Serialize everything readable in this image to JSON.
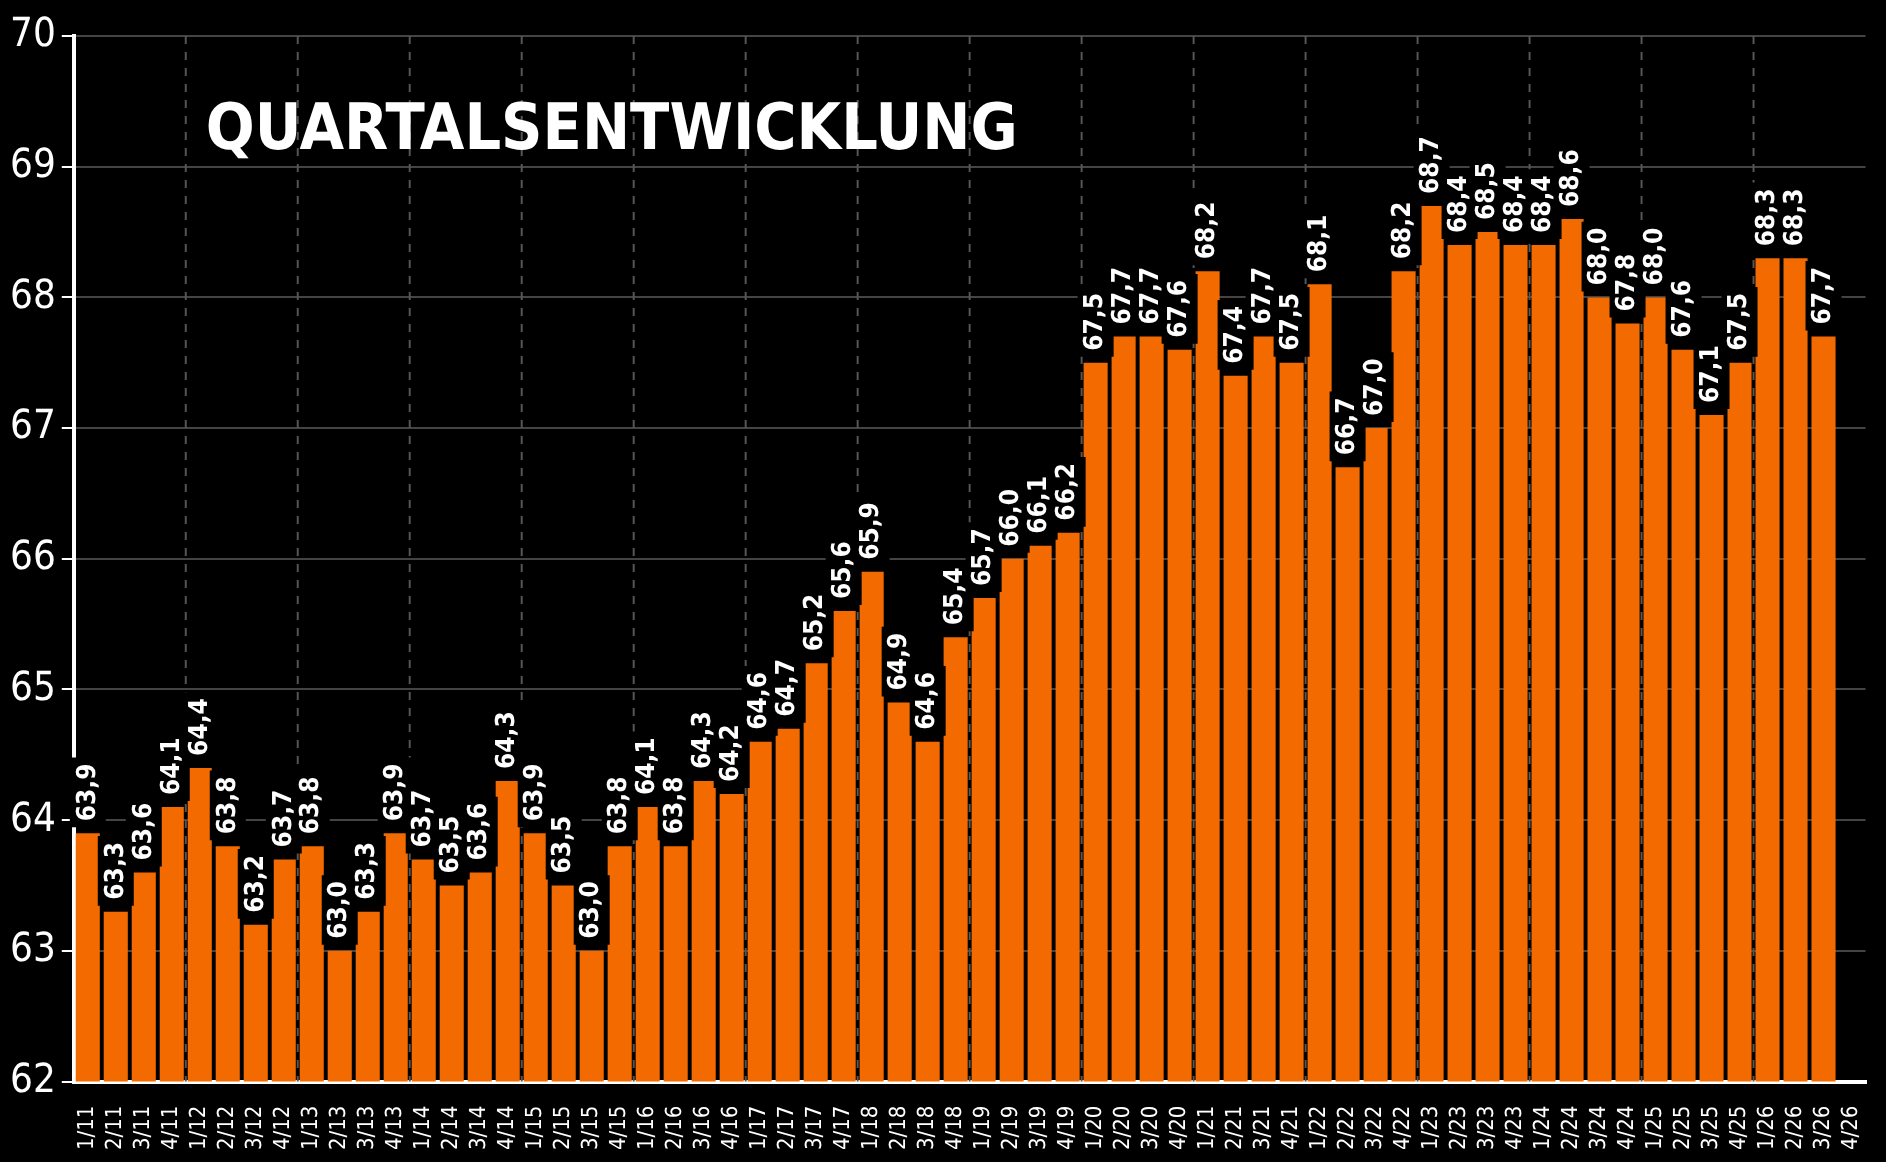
{
  "chart_data": {
    "type": "bar",
    "title": "QUARTALSENTWICKLUNG",
    "categories": [
      "1/11",
      "2/11",
      "3/11",
      "4/11",
      "1/12",
      "2/12",
      "3/12",
      "4/12",
      "1/13",
      "2/13",
      "3/13",
      "4/13",
      "1/14",
      "2/14",
      "3/14",
      "4/14",
      "1/15",
      "2/15",
      "3/15",
      "4/15",
      "1/16",
      "2/16",
      "3/16",
      "4/16",
      "1/17",
      "2/17",
      "3/17",
      "4/17",
      "1/18",
      "2/18",
      "3/18",
      "4/18",
      "1/19",
      "2/19",
      "3/19",
      "4/19",
      "1/20",
      "2/20",
      "3/20",
      "4/20",
      "1/21",
      "2/21",
      "3/21",
      "4/21",
      "1/22",
      "2/22",
      "3/22",
      "4/22",
      "1/23",
      "2/23",
      "3/23",
      "4/23",
      "1/24",
      "2/24",
      "3/24",
      "4/24",
      "1/25",
      "2/25",
      "3/25",
      "4/25",
      "1/26",
      "2/26",
      "3/26",
      "4/26"
    ],
    "values": [
      63.9,
      63.3,
      63.6,
      64.1,
      64.4,
      63.8,
      63.2,
      63.7,
      63.8,
      63.0,
      63.3,
      63.9,
      63.7,
      63.5,
      63.6,
      64.3,
      63.9,
      63.5,
      63.0,
      63.8,
      64.1,
      63.8,
      64.3,
      64.2,
      64.6,
      64.7,
      65.2,
      65.6,
      65.9,
      64.9,
      64.6,
      65.4,
      65.7,
      66.0,
      66.1,
      66.2,
      67.5,
      67.7,
      67.7,
      67.6,
      68.2,
      67.4,
      67.7,
      67.5,
      68.1,
      66.7,
      67.0,
      68.2,
      68.7,
      68.4,
      68.5,
      68.4,
      68.4,
      68.6,
      68.0,
      67.8,
      68.0,
      67.6,
      67.1,
      67.5,
      68.3,
      68.3,
      67.7,
      null
    ],
    "value_labels": [
      "63,9",
      "63,3",
      "63,6",
      "64,1",
      "64,4",
      "63,8",
      "63,2",
      "63,7",
      "63,8",
      "63,0",
      "63,3",
      "63,9",
      "63,7",
      "63,5",
      "63,6",
      "64,3",
      "63,9",
      "63,5",
      "63,0",
      "63,8",
      "64,1",
      "63,8",
      "64,3",
      "64,2",
      "64,6",
      "64,7",
      "65,2",
      "65,6",
      "65,9",
      "64,9",
      "64,6",
      "65,4",
      "65,7",
      "66,0",
      "66,1",
      "66,2",
      "67,5",
      "67,7",
      "67,7",
      "67,6",
      "68,2",
      "67,4",
      "67,7",
      "67,5",
      "68,1",
      "66,7",
      "67,0",
      "68,2",
      "68,7",
      "68,4",
      "68,5",
      "68,4",
      "68,4",
      "68,6",
      "68,0",
      "67,8",
      "68,0",
      "67,6",
      "67,1",
      "67,5",
      "68,3",
      "68,3",
      "67,7",
      null
    ],
    "color": "#f26a00",
    "ylim": [
      62,
      70
    ],
    "yticks": [
      62,
      63,
      64,
      65,
      66,
      67,
      68,
      69,
      70
    ],
    "grid": true,
    "legend": false
  }
}
